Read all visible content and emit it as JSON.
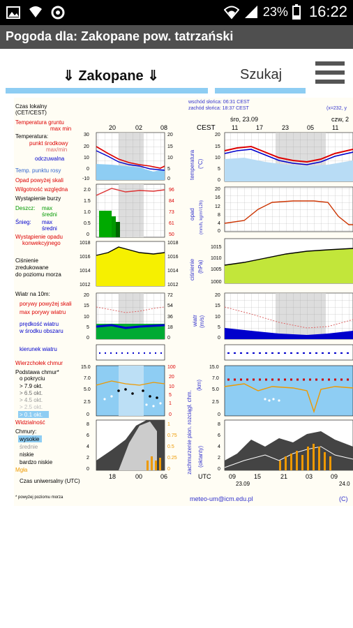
{
  "status_bar": {
    "battery": "23%",
    "time": "16:22",
    "icons": [
      "image-icon",
      "wifi-warning-icon",
      "sync-icon",
      "wifi-icon",
      "signal-icon",
      "battery-icon"
    ]
  },
  "app_bar": {
    "title": "Pogoda dla: Zakopane  pow. tatrzański"
  },
  "toolbar": {
    "location_label": "⇓ Zakopane ⇓",
    "search_label": "Szukaj",
    "menu_icon": "hamburger-menu-icon"
  },
  "meteogram": {
    "legend": {
      "local_time": "Czas lokalny",
      "local_time_zone": "(CET/CEST)",
      "ground_temp": "Temperatura gruntu",
      "ground_temp_maxmin": "max min",
      "temperature": "Temperatura:",
      "dew_point_mid": "punkt środkowy",
      "max_min": "max/min",
      "sensible": "odczuwalna",
      "temp_dew": "Temp. punktu rosy",
      "precip_label": "Opad powyżej skali",
      "humidity": "Wilgotność względna",
      "storm": "Wystąpienie burzy",
      "rain": "Deszcz:",
      "rain_max": "max",
      "rain_mean": "średni",
      "snow": "Śnieg:",
      "snow_max": "max",
      "snow_mean": "średni",
      "conv_precip": "Wystąpienie opadu",
      "conv_precip2": "konwekcyjnego",
      "pressure": "Ciśnienie",
      "pressure2": "zredukowane",
      "pressure3": "do poziomu morza",
      "wind_on": "Wiatr na 10m:",
      "gust_above": "porywy powyżej skali",
      "gust_max": "max porywy wiatru",
      "wind_speed": "prędkość wiatru",
      "wind_mean": "w środku obszaru",
      "wind_dir": "kierunek wiatru",
      "cloud_top": "Wierzchołek chmur",
      "cloud_base": "Podstawa chmur*",
      "coverage": "o pokryciu",
      "oct79": "> 7.9 okt.",
      "oct65": "> 6.5 okt.",
      "oct45": "> 4.5 okt.",
      "oct25": "> 2.5 okt.",
      "oct01": "> 0.1 okt.",
      "visibility": "Widzialność",
      "clouds": "Chmury:",
      "high": "wysokie",
      "mid": "średnie",
      "low": "niskie",
      "very_low": "bardzo niskie",
      "fog": "Mgła",
      "utc_time": "Czas uniwersalny (UTC)",
      "footnote": "* powyżej poziomu morza"
    },
    "header": {
      "sunset": "zachód słońca: 18:37 CEST",
      "sun_top": "wschód słońca: 06:31 CEST",
      "cest": "CEST",
      "day1": "śro, 23.09",
      "day2": "czw, 2",
      "grid_note": "(x=232, y",
      "top_hours": [
        "11",
        "17",
        "23",
        "05",
        "11"
      ],
      "small_top": [
        "20",
        "02",
        "08"
      ]
    },
    "axis_labels": {
      "temperature": "temperatura",
      "temp_unit": "(°C)",
      "precip": "opad",
      "precip_unit": "(mm/h, kg/m²/12h)",
      "pressure": "ciśnienie",
      "pressure_unit": "(hPa)",
      "wind": "wiatr",
      "wind_unit": "(m/s)",
      "cloud": "zachmurzenie pion. rozciągł. chm.",
      "cloud_unit": "(km)",
      "octants": "(oktanty)",
      "utc": "UTC"
    },
    "ticks": {
      "temp_left": [
        "30",
        "20",
        "10",
        "0",
        "-10"
      ],
      "temp_right": [
        "20",
        "15",
        "10",
        "5",
        "0"
      ],
      "temp_big": [
        "20",
        "15",
        "10",
        "5",
        "0"
      ],
      "precip_left": [
        "2.0",
        "1.5",
        "1.0",
        "0.5",
        "0"
      ],
      "precip_right": [
        "96",
        "84",
        "73",
        "61",
        "50"
      ],
      "precip_big": [
        "20",
        "16",
        "12",
        "8",
        "4",
        "0"
      ],
      "pressure_left": [
        "1018",
        "1016",
        "1014",
        "1012"
      ],
      "pressure_right": [
        "1018",
        "1016",
        "1014",
        "1012"
      ],
      "pressure_big": [
        "1015",
        "1010",
        "1005",
        "1000"
      ],
      "wind_left": [
        "20",
        "15",
        "10",
        "5",
        "0"
      ],
      "wind_right": [
        "72",
        "54",
        "36",
        "18",
        "0"
      ],
      "wind_big": [
        "20",
        "15",
        "10",
        "5",
        "0"
      ],
      "cloud_left": [
        "15.0",
        "7.0",
        "5.0",
        "2.5",
        "0"
      ],
      "cloud_right": [
        "100",
        "20",
        "10",
        "5",
        "1",
        "0"
      ],
      "cloud_big": [
        "15.0",
        "7.0",
        "5.0",
        "2.5",
        "0"
      ],
      "oct_left": [
        "8",
        "6",
        "4",
        "2",
        "0"
      ],
      "oct_right": [
        "1",
        "0.75",
        "0.5",
        "0.25",
        "0"
      ],
      "oct_big": [
        "8",
        "6",
        "4",
        "2",
        "0"
      ],
      "small_bottom": [
        "18",
        "00",
        "06"
      ],
      "big_bottom": [
        "09",
        "15",
        "21",
        "03",
        "09"
      ],
      "date1": "23.09",
      "date2": "24.0"
    },
    "footer": {
      "email": "meteo-um@icm.edu.pl",
      "copyright": "(C)"
    }
  }
}
